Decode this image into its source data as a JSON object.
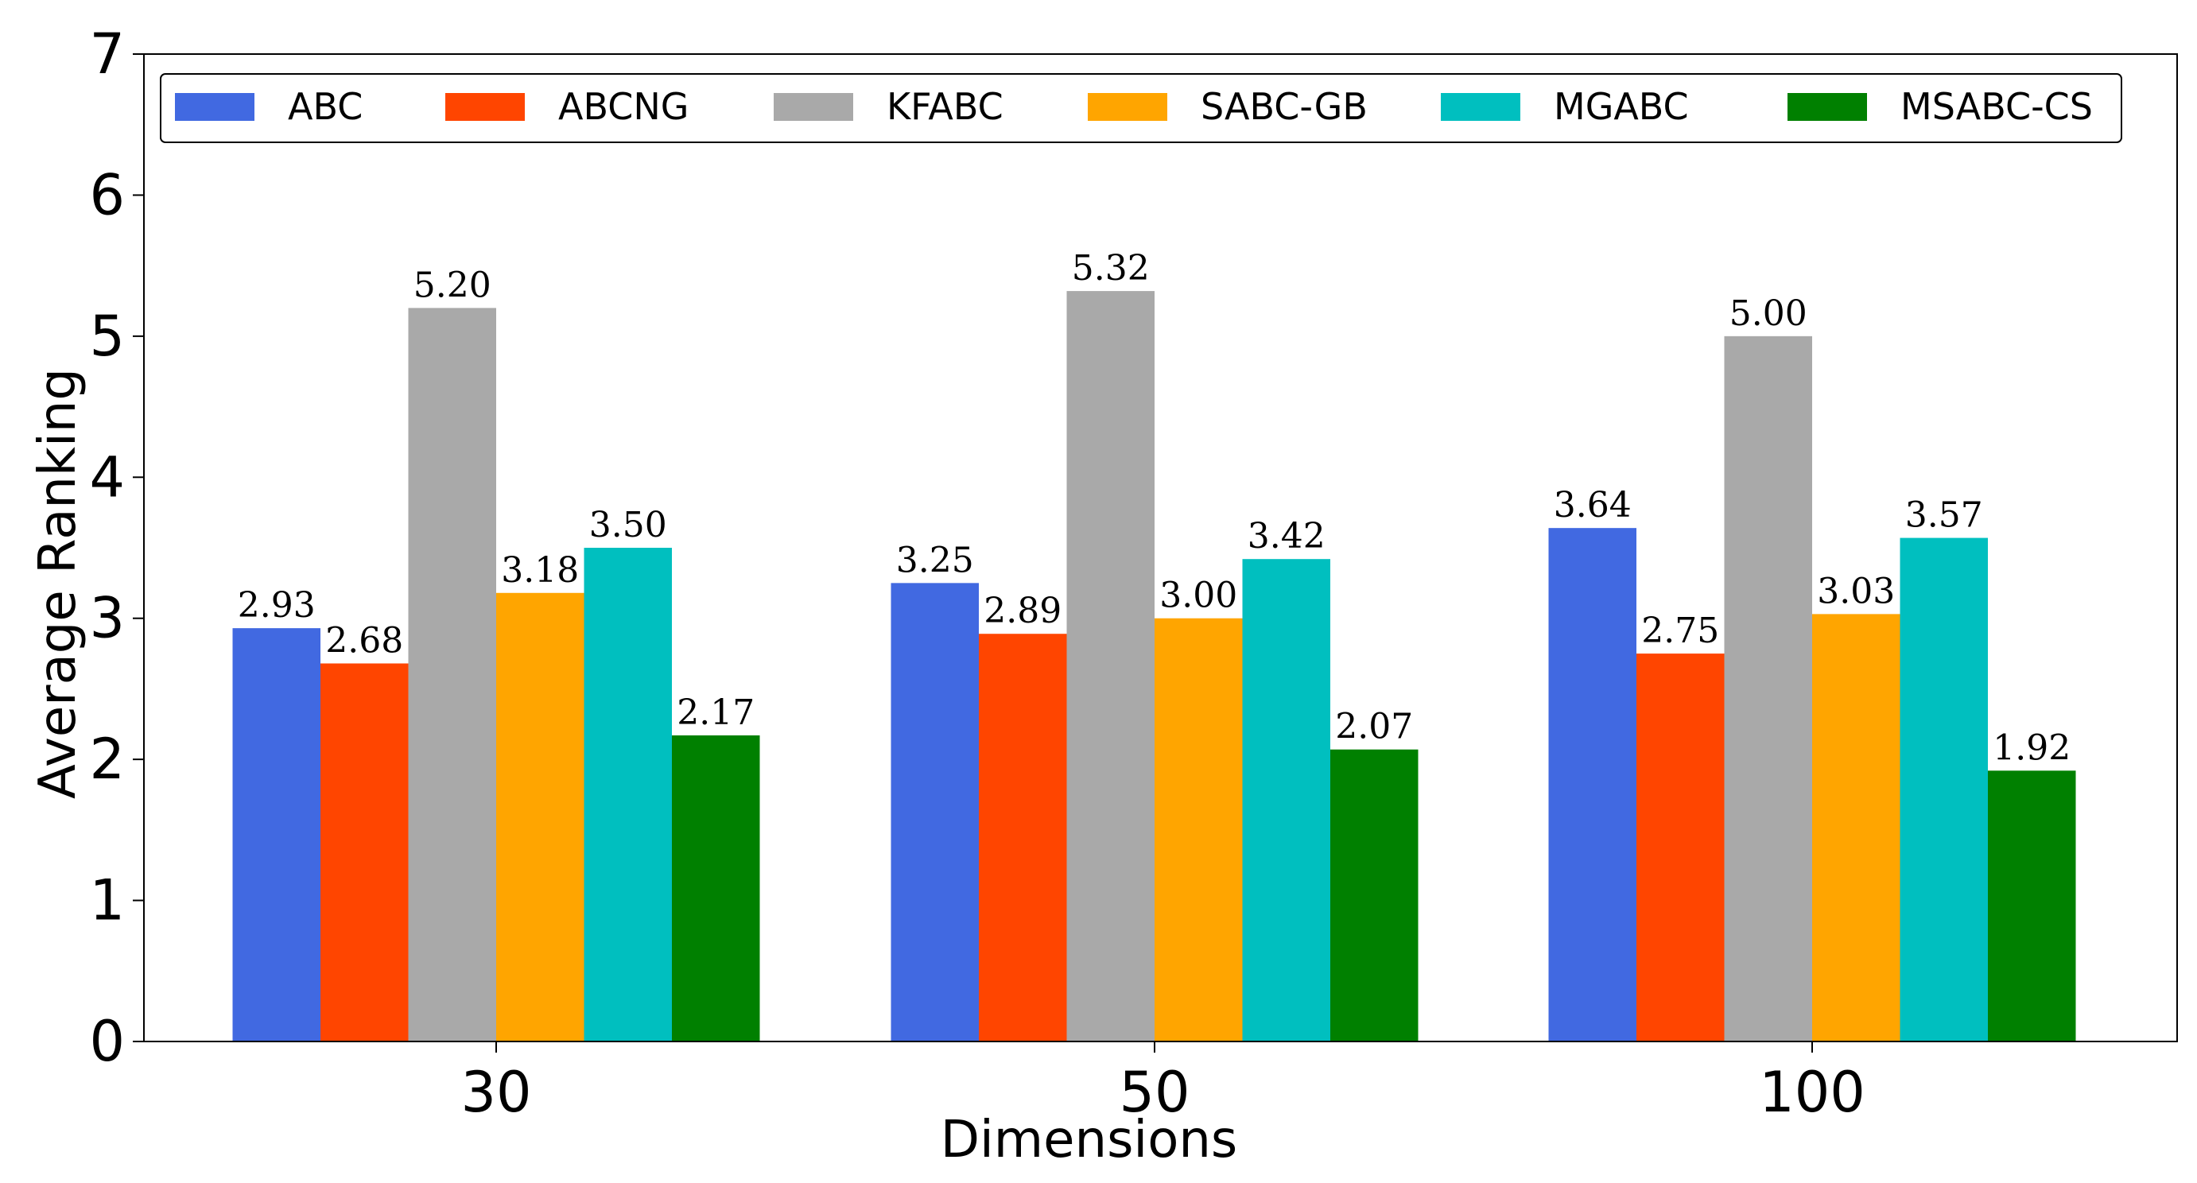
{
  "chart_data": {
    "type": "bar",
    "title": "",
    "xlabel": "Dimensions",
    "ylabel": "Average Ranking",
    "categories": [
      "30",
      "50",
      "100"
    ],
    "ylim": [
      0,
      7
    ],
    "yticks": [
      "0",
      "1",
      "2",
      "3",
      "4",
      "5",
      "6",
      "7"
    ],
    "legend_position": "top",
    "grid": false,
    "series": [
      {
        "name": "ABC",
        "color": "#4169E1",
        "values": [
          2.93,
          3.25,
          3.64
        ],
        "labels": [
          "2.93",
          "3.25",
          "3.64"
        ]
      },
      {
        "name": "ABCNG",
        "color": "#FF4500",
        "values": [
          2.68,
          2.89,
          2.75
        ],
        "labels": [
          "2.68",
          "2.89",
          "2.75"
        ]
      },
      {
        "name": "KFABC",
        "color": "#A9A9A9",
        "values": [
          5.2,
          5.32,
          5.0
        ],
        "labels": [
          "5.20",
          "5.32",
          "5.00"
        ]
      },
      {
        "name": "SABC-GB",
        "color": "#FFA500",
        "values": [
          3.18,
          3.0,
          3.03
        ],
        "labels": [
          "3.18",
          "3.00",
          "3.03"
        ]
      },
      {
        "name": "MGABC",
        "color": "#00BFBF",
        "values": [
          3.5,
          3.42,
          3.57
        ],
        "labels": [
          "3.50",
          "3.42",
          "3.57"
        ]
      },
      {
        "name": "MSABC-CS",
        "color": "#008000",
        "values": [
          2.17,
          2.07,
          1.92
        ],
        "labels": [
          "2.17",
          "2.07",
          "1.92"
        ]
      }
    ]
  }
}
